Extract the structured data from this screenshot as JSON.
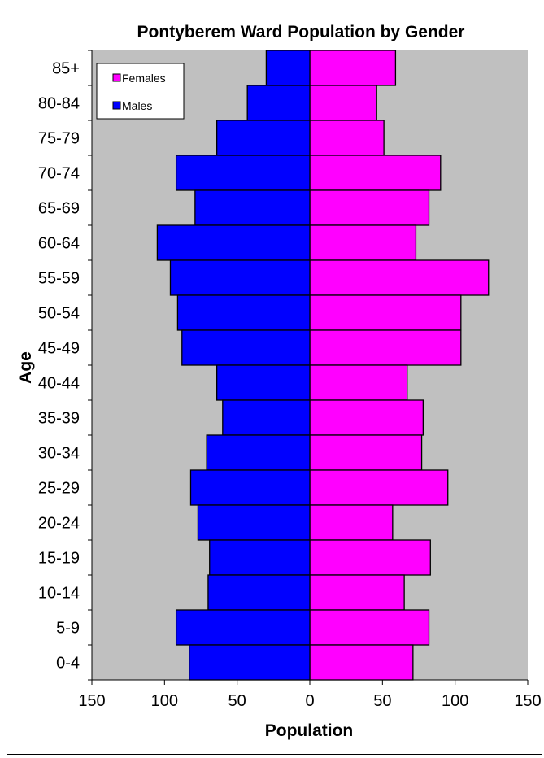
{
  "chart_data": {
    "type": "bar",
    "orientation": "horizontal",
    "layout": "population-pyramid",
    "title": "Pontyberem Ward Population by Gender",
    "xlabel": "Population",
    "ylabel": "Age",
    "xlim": [
      -150,
      150
    ],
    "x_ticks": [
      "150",
      "100",
      "50",
      "0",
      "50",
      "100",
      "150"
    ],
    "categories": [
      "85+",
      "80-84",
      "75-79",
      "70-74",
      "65-69",
      "60-64",
      "55-59",
      "50-54",
      "45-49",
      "40-44",
      "35-39",
      "30-34",
      "25-29",
      "20-24",
      "15-19",
      "10-14",
      "5-9",
      "0-4"
    ],
    "series": [
      {
        "name": "Females",
        "color": "#ff00ff",
        "side": "right",
        "values": [
          59,
          46,
          51,
          90,
          82,
          73,
          123,
          104,
          104,
          67,
          78,
          77,
          95,
          57,
          83,
          65,
          82,
          71
        ]
      },
      {
        "name": "Males",
        "color": "#0000ff",
        "side": "left",
        "values": [
          30,
          43,
          64,
          92,
          79,
          105,
          96,
          91,
          88,
          64,
          60,
          71,
          82,
          77,
          69,
          70,
          92,
          83
        ]
      }
    ],
    "plot_background": "#c0c0c0",
    "grid": false,
    "legend": {
      "position": "top-left",
      "entries": [
        "Females",
        "Males"
      ]
    }
  }
}
